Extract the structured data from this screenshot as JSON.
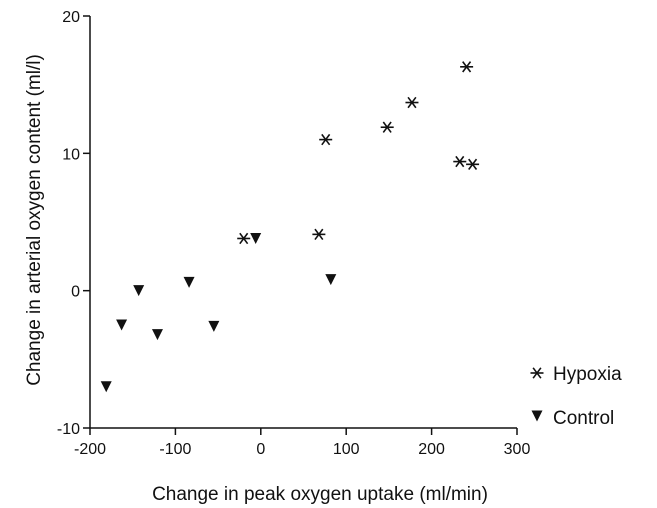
{
  "chart_data": {
    "type": "scatter",
    "xlabel": "Change in peak oxygen uptake (ml/min)",
    "ylabel": "Change in arterial oxygen content (ml/l)",
    "xlim": [
      -200,
      300
    ],
    "ylim": [
      -10,
      20
    ],
    "xticks": [
      -200,
      -100,
      0,
      100,
      200,
      300
    ],
    "yticks": [
      -10,
      0,
      10,
      20
    ],
    "xtick_labels": [
      "-200",
      "-100",
      "0",
      "100",
      "200",
      "300"
    ],
    "ytick_labels": [
      "-10",
      "0",
      "10",
      "20"
    ],
    "grid": false,
    "legend_position": "bottom-right",
    "series": [
      {
        "name": "Hypoxia",
        "marker": "asterisk",
        "color": "#111111",
        "points": [
          [
            -20,
            3.8
          ],
          [
            68,
            4.1
          ],
          [
            76,
            11.0
          ],
          [
            148,
            11.9
          ],
          [
            177,
            13.7
          ],
          [
            233,
            9.4
          ],
          [
            241,
            16.3
          ],
          [
            248,
            9.2
          ]
        ]
      },
      {
        "name": "Control",
        "marker": "triangle-down",
        "color": "#111111",
        "points": [
          [
            -181,
            -7.0
          ],
          [
            -163,
            -2.5
          ],
          [
            -143,
            0.0
          ],
          [
            -121,
            -3.2
          ],
          [
            -84,
            0.6
          ],
          [
            -55,
            -2.6
          ],
          [
            -6,
            3.8
          ],
          [
            82,
            0.8
          ]
        ]
      }
    ]
  }
}
